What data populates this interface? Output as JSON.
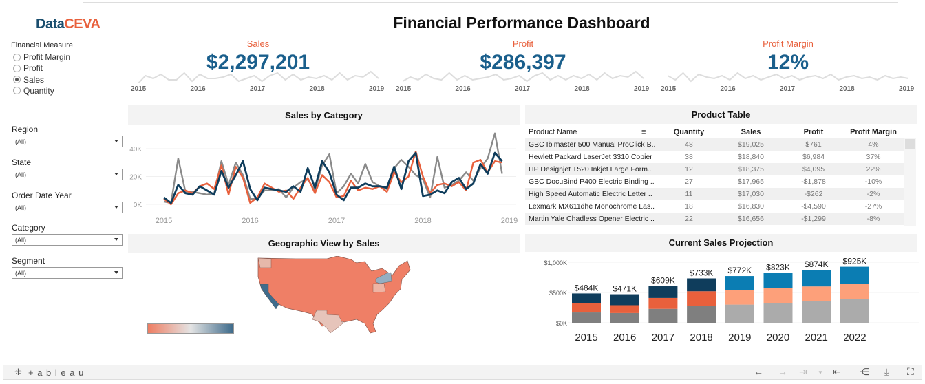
{
  "header": {
    "logo_a": "Data",
    "logo_b": "CEVA",
    "title": "Financial Performance Dashboard"
  },
  "financial_measure": {
    "label": "Financial Measure",
    "options": [
      {
        "label": "Profit Margin",
        "selected": false
      },
      {
        "label": "Profit",
        "selected": false
      },
      {
        "label": "Sales",
        "selected": true
      },
      {
        "label": "Quantity",
        "selected": false
      }
    ]
  },
  "filters": [
    {
      "label": "Region",
      "value": "(All)"
    },
    {
      "label": "State",
      "value": "(All)"
    },
    {
      "label": "Order Date Year",
      "value": "(All)"
    },
    {
      "label": "Category",
      "value": "(All)"
    },
    {
      "label": "Segment",
      "value": "(All)"
    }
  ],
  "kpis": [
    {
      "title": "Sales",
      "value": "$2,297,201",
      "years": [
        "2015",
        "2016",
        "2017",
        "2018",
        "2019"
      ]
    },
    {
      "title": "Profit",
      "value": "$286,397",
      "years": [
        "2015",
        "2016",
        "2017",
        "2018",
        "2019"
      ]
    },
    {
      "title": "Profit Margin",
      "value": "12%",
      "years": [
        "2015",
        "2016",
        "2017",
        "2018",
        "2019"
      ]
    }
  ],
  "sales_by_category": {
    "title": "Sales by Category",
    "colors": [
      "#7f7f7f",
      "#e8603c",
      "#0f3d5c"
    ]
  },
  "geo": {
    "title": "Geographic View by Sales",
    "scale_colors": [
      "#ee7d62",
      "#e4e4e4",
      "#3d6a8a"
    ]
  },
  "product_table": {
    "title": "Product Table",
    "columns": [
      "Product Name",
      "Quantity",
      "Sales",
      "Profit",
      "Profit Margin"
    ],
    "rows": [
      [
        "GBC Ibimaster 500 Manual ProClick B..",
        "48",
        "$19,025",
        "$761",
        "4%"
      ],
      [
        "Hewlett Packard LaserJet 3310 Copier",
        "38",
        "$18,840",
        "$6,984",
        "37%"
      ],
      [
        "HP Designjet T520 Inkjet Large Form..",
        "12",
        "$18,375",
        "$4,095",
        "22%"
      ],
      [
        "GBC DocuBind P400 Electric Binding ..",
        "27",
        "$17,965",
        "-$1,878",
        "-10%"
      ],
      [
        "High Speed Automatic Electric Letter ..",
        "11",
        "$17,030",
        "-$262",
        "-2%"
      ],
      [
        "Lexmark MX611dhe Monochrome Las..",
        "18",
        "$16,830",
        "-$4,590",
        "-27%"
      ],
      [
        "Martin Yale Chadless Opener Electric ..",
        "22",
        "$16,656",
        "-$1,299",
        "-8%"
      ]
    ]
  },
  "projection": {
    "title": "Current Sales Projection"
  },
  "toolbar": {
    "brand": "+ a b l e a u"
  },
  "chart_data": [
    {
      "type": "line",
      "title": "Sales by Category",
      "xlabel": "",
      "ylabel": "",
      "x_ticks": [
        "2015",
        "2016",
        "2017",
        "2018",
        "2019"
      ],
      "y_ticks": [
        "0K",
        "20K",
        "40K"
      ],
      "ylim": [
        0,
        52
      ],
      "grid": true,
      "series": [
        {
          "color": "#8a8a8a",
          "values": [
            2,
            1,
            33,
            9,
            9,
            8,
            7,
            8,
            31,
            14,
            30,
            21,
            4,
            4,
            10,
            10,
            11,
            5,
            12,
            16,
            18,
            10,
            28,
            36,
            8,
            13,
            22,
            15,
            29,
            16,
            13,
            11,
            26,
            32,
            27,
            21,
            18,
            5,
            34,
            12,
            14,
            17,
            23,
            17,
            26,
            33,
            51,
            22
          ]
        },
        {
          "color": "#e8603c",
          "values": [
            4,
            0,
            8,
            10,
            8,
            13,
            15,
            11,
            28,
            7,
            27,
            19,
            1,
            5,
            15,
            12,
            9,
            10,
            4,
            12,
            19,
            8,
            21,
            16,
            5,
            6,
            17,
            10,
            12,
            11,
            13,
            9,
            23,
            16,
            20,
            38,
            20,
            8,
            14,
            15,
            13,
            16,
            10,
            30,
            32,
            23,
            31,
            30
          ]
        },
        {
          "color": "#0f3d5c",
          "values": [
            5,
            1,
            14,
            8,
            7,
            13,
            10,
            7,
            24,
            12,
            21,
            31,
            11,
            3,
            12,
            11,
            10,
            9,
            13,
            9,
            26,
            12,
            31,
            23,
            7,
            3,
            12,
            12,
            15,
            13,
            13,
            12,
            27,
            11,
            31,
            37,
            6,
            7,
            10,
            8,
            16,
            19,
            11,
            15,
            29,
            22,
            37,
            31
          ]
        }
      ]
    },
    {
      "type": "bar",
      "stacked": true,
      "title": "Current Sales Projection",
      "categories": [
        "2015",
        "2016",
        "2017",
        "2018",
        "2019",
        "2020",
        "2021",
        "2022"
      ],
      "y_ticks": [
        "$0K",
        "$500K",
        "$1,000K"
      ],
      "ylim": [
        0,
        1000
      ],
      "totals_labels": [
        "$484K",
        "$471K",
        "$609K",
        "$733K",
        "$772K",
        "$823K",
        "$874K",
        "$925K"
      ],
      "segments": [
        [
          170,
          155,
          159
        ],
        [
          160,
          130,
          181
        ],
        [
          230,
          180,
          199
        ],
        [
          280,
          240,
          213
        ],
        [
          300,
          235,
          237
        ],
        [
          325,
          250,
          248
        ],
        [
          360,
          240,
          274
        ],
        [
          395,
          245,
          285
        ]
      ],
      "colors_actual": [
        "#7f7f7f",
        "#e8603c",
        "#0f3d5c"
      ],
      "colors_projected": [
        "#ababab",
        "#fda07a",
        "#0b7db3"
      ]
    }
  ]
}
